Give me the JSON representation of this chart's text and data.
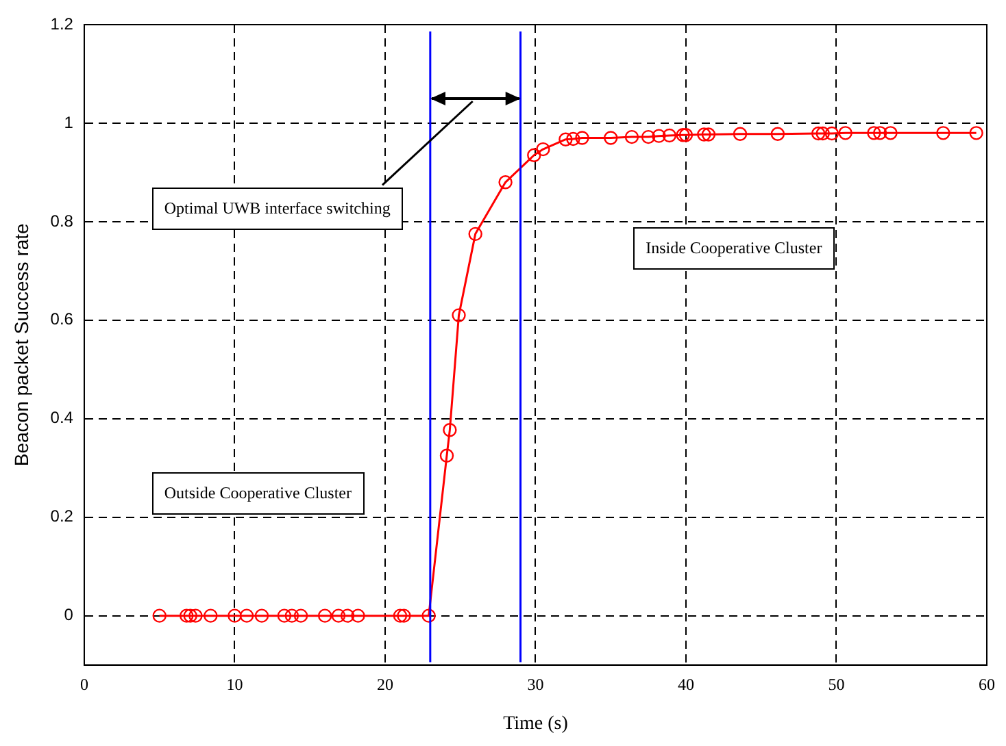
{
  "chart_data": {
    "type": "line",
    "xlabel": "Time (s)",
    "ylabel": "Beacon packet Success rate",
    "x": [
      5.0,
      6.8,
      7.05,
      7.4,
      8.4,
      10.0,
      10.8,
      11.8,
      13.3,
      13.8,
      14.4,
      16.0,
      16.9,
      17.5,
      18.2,
      21.0,
      21.25,
      22.9,
      24.1,
      24.3,
      24.9,
      26.0,
      28.0,
      29.9,
      30.5,
      32.0,
      32.5,
      33.1,
      35.0,
      36.4,
      37.5,
      38.2,
      38.9,
      39.8,
      40.0,
      41.2,
      41.5,
      43.6,
      46.1,
      48.8,
      49.1,
      49.7,
      50.6,
      52.5,
      52.9,
      53.6,
      57.1,
      59.3
    ],
    "series": [
      {
        "color": "#ff0000",
        "values": [
          0,
          0,
          0,
          0,
          0,
          0,
          0,
          0,
          0,
          0,
          0,
          0,
          0,
          0,
          0,
          0,
          0,
          0,
          0.325,
          0.377,
          0.61,
          0.775,
          0.88,
          0.935,
          0.947,
          0.967,
          0.968,
          0.97,
          0.97,
          0.972,
          0.972,
          0.974,
          0.975,
          0.976,
          0.976,
          0.977,
          0.977,
          0.978,
          0.978,
          0.979,
          0.979,
          0.979,
          0.98,
          0.98,
          0.98,
          0.98,
          0.98,
          0.98
        ]
      }
    ],
    "xlim": [
      0,
      60
    ],
    "xticks": [
      0,
      10,
      20,
      30,
      40,
      50,
      60
    ],
    "ylim": [
      -0.1,
      1.2
    ],
    "yticks": [
      0,
      0.2,
      0.4,
      0.6,
      0.8,
      1,
      1.2
    ],
    "grid": true,
    "marker": "circle",
    "line_style": "solid",
    "ref_lines": [
      {
        "axis": "x",
        "value": 23,
        "color": "#0000ff"
      },
      {
        "axis": "x",
        "value": 29,
        "color": "#0000ff"
      }
    ],
    "annotations": [
      "Optimal UWB interface switching",
      "Inside Cooperative Cluster",
      "Outside Cooperative Cluster"
    ]
  }
}
